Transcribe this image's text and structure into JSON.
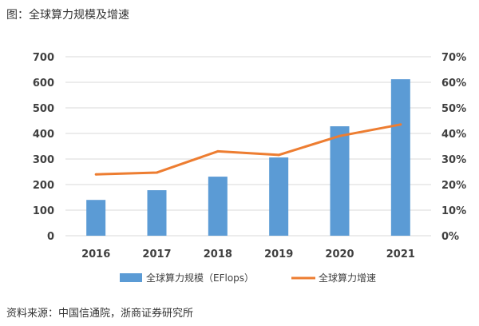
{
  "title": "图：全球算力规模及增速",
  "source": "资料来源：中国信通院，浙商证券研究所",
  "colors": {
    "bar": "#5B9BD5",
    "line": "#ED7D31"
  },
  "chart_data": {
    "type": "bar+line",
    "categories": [
      "2016",
      "2017",
      "2018",
      "2019",
      "2020",
      "2021"
    ],
    "series": [
      {
        "name": "全球算力规模（EFlops）",
        "type": "bar",
        "axis": "left",
        "values": [
          140,
          178,
          231,
          306,
          428,
          612
        ]
      },
      {
        "name": "全球算力增速",
        "type": "line",
        "axis": "right",
        "values": [
          24,
          24.7,
          33,
          31.6,
          39,
          43.5
        ]
      }
    ],
    "ylim_left": [
      0,
      700
    ],
    "yticks_left": [
      "0",
      "100",
      "200",
      "300",
      "400",
      "500",
      "600",
      "700"
    ],
    "ylim_right": [
      0,
      70
    ],
    "yticks_right": [
      "0%",
      "10%",
      "20%",
      "30%",
      "40%",
      "50%",
      "60%",
      "70%"
    ],
    "grid": true,
    "legend": "bottom"
  }
}
